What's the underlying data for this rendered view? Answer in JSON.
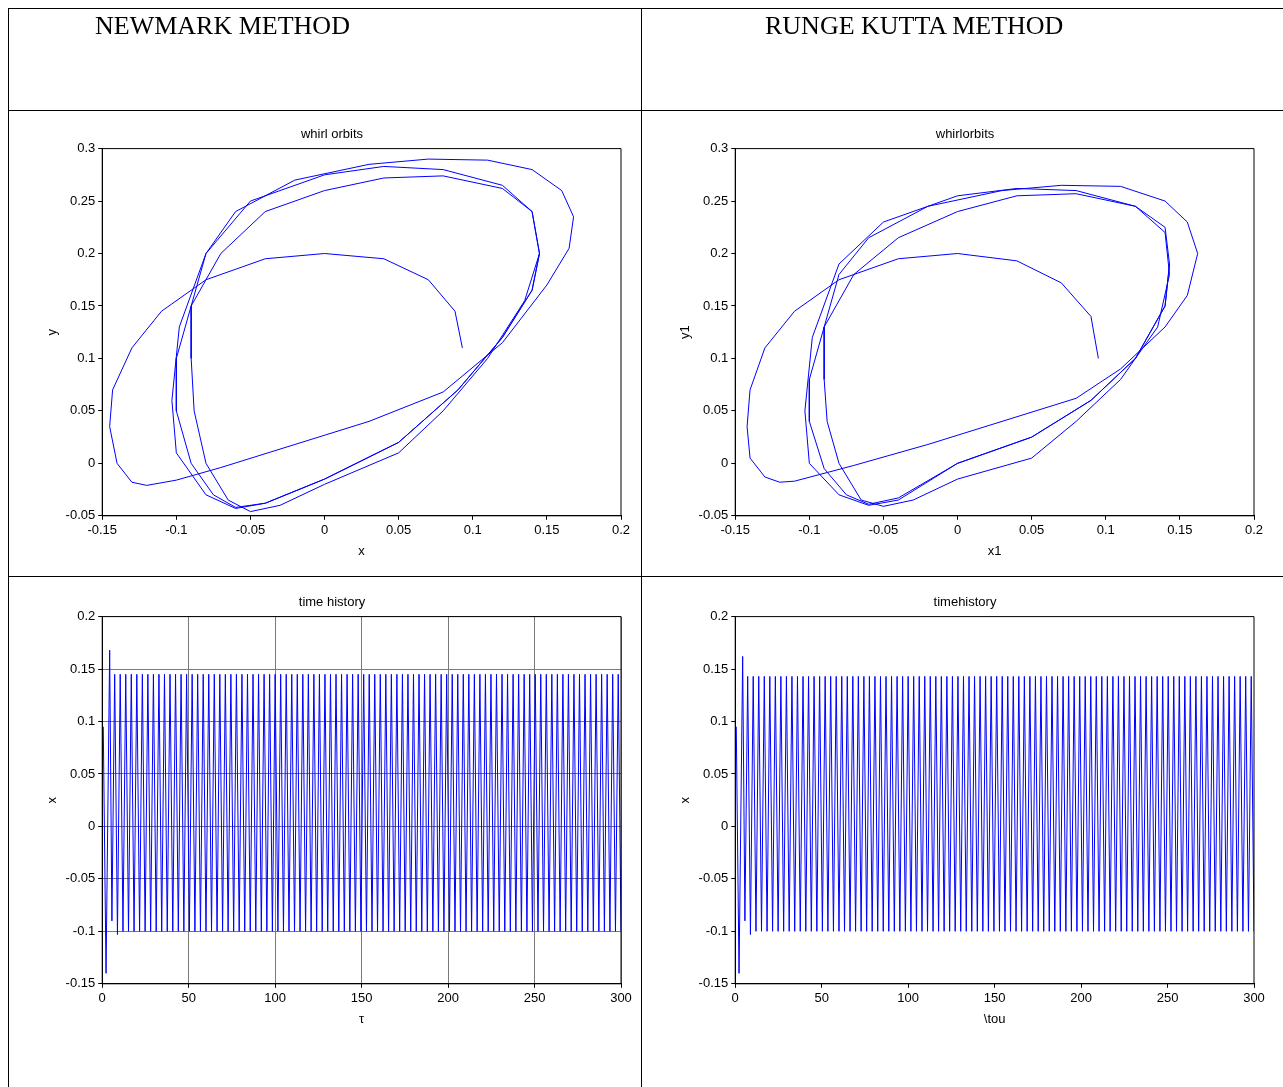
{
  "chart_data": [
    {
      "type": "line",
      "title": "whirl orbits",
      "xlabel": "x",
      "ylabel": "y",
      "annotations": [
        "NEWMARK METHOD"
      ],
      "color": "#0000ff",
      "xlim": [
        -0.15,
        0.2
      ],
      "ylim": [
        -0.05,
        0.3
      ],
      "xticks": [
        -0.15,
        -0.1,
        -0.05,
        0,
        0.05,
        0.1,
        0.15,
        0.2
      ],
      "yticks": [
        -0.05,
        0,
        0.05,
        0.1,
        0.15,
        0.2,
        0.25,
        0.3
      ],
      "x": [
        0.093,
        0.088,
        0.07,
        0.04,
        0,
        -0.04,
        -0.08,
        -0.11,
        -0.13,
        -0.143,
        -0.145,
        -0.14,
        -0.13,
        -0.12,
        -0.1,
        -0.07,
        -0.02,
        0.03,
        0.08,
        0.12,
        0.15,
        0.165,
        0.168,
        0.16,
        0.14,
        0.11,
        0.07,
        0.03,
        -0.02,
        -0.06,
        -0.08,
        -0.09,
        -0.09,
        -0.088,
        -0.08,
        -0.065,
        -0.05,
        -0.03,
        0,
        0.05,
        0.08,
        0.11,
        0.135,
        0.145,
        0.14,
        0.12,
        0.08,
        0.04,
        0,
        -0.05,
        -0.08,
        -0.098,
        -0.103,
        -0.1,
        -0.08,
        -0.06,
        -0.04,
        0,
        0.05,
        0.09,
        0.12,
        0.14,
        0.145,
        0.14,
        0.12,
        0.08,
        0.04,
        0,
        -0.04,
        -0.07,
        -0.09,
        -0.1,
        -0.1,
        -0.09,
        -0.075,
        -0.06,
        -0.04,
        0,
        0.05,
        0.09,
        0.12,
        0.14,
        0.145
      ],
      "values": [
        0.11,
        0.145,
        0.175,
        0.195,
        0.2,
        0.195,
        0.175,
        0.145,
        0.11,
        0.07,
        0.035,
        0,
        -0.018,
        -0.021,
        -0.016,
        -0.004,
        0.018,
        0.04,
        0.068,
        0.115,
        0.17,
        0.205,
        0.235,
        0.26,
        0.28,
        0.289,
        0.29,
        0.285,
        0.27,
        0.24,
        0.2,
        0.15,
        0.1,
        0.05,
        0,
        -0.035,
        -0.046,
        -0.04,
        -0.02,
        0.01,
        0.05,
        0.1,
        0.155,
        0.2,
        0.24,
        0.265,
        0.28,
        0.283,
        0.275,
        0.25,
        0.2,
        0.13,
        0.06,
        0.01,
        -0.03,
        -0.043,
        -0.038,
        -0.015,
        0.02,
        0.07,
        0.12,
        0.165,
        0.2,
        0.24,
        0.262,
        0.274,
        0.272,
        0.26,
        0.24,
        0.2,
        0.15,
        0.1,
        0.05,
        0,
        -0.03,
        -0.042,
        -0.038,
        -0.015,
        0.02,
        0.07,
        0.12,
        0.165,
        0.2
      ]
    },
    {
      "type": "line",
      "title": "whirlorbits",
      "xlabel": "x1",
      "ylabel": "y1",
      "annotations": [
        "RUNGE KUTTA METHOD"
      ],
      "color": "#0000ff",
      "xlim": [
        -0.15,
        0.2
      ],
      "ylim": [
        -0.05,
        0.3
      ],
      "xticks": [
        -0.15,
        -0.1,
        -0.05,
        0,
        0.05,
        0.1,
        0.15,
        0.2
      ],
      "yticks": [
        -0.05,
        0,
        0.05,
        0.1,
        0.15,
        0.2,
        0.25,
        0.3
      ],
      "x": [
        0.095,
        0.09,
        0.07,
        0.04,
        0,
        -0.04,
        -0.08,
        -0.11,
        -0.13,
        -0.14,
        -0.142,
        -0.14,
        -0.13,
        -0.12,
        -0.11,
        -0.07,
        -0.02,
        0.03,
        0.08,
        0.11,
        0.14,
        0.155,
        0.162,
        0.155,
        0.14,
        0.11,
        0.07,
        0.03,
        -0.02,
        -0.06,
        -0.08,
        -0.09,
        -0.09,
        -0.088,
        -0.08,
        -0.065,
        -0.05,
        -0.03,
        0,
        0.05,
        0.08,
        0.11,
        0.135,
        0.143,
        0.14,
        0.12,
        0.08,
        0.04,
        0,
        -0.05,
        -0.08,
        -0.098,
        -0.103,
        -0.1,
        -0.08,
        -0.06,
        -0.04,
        0,
        0.05,
        0.09,
        0.12,
        0.14,
        0.143,
        0.14,
        0.12,
        0.08,
        0.04,
        0,
        -0.04,
        -0.07,
        -0.09,
        -0.1,
        -0.1,
        -0.09,
        -0.075,
        -0.06,
        -0.04,
        0,
        0.05,
        0.09,
        0.12,
        0.14,
        0.143
      ],
      "values": [
        0.1,
        0.14,
        0.172,
        0.193,
        0.2,
        0.195,
        0.175,
        0.145,
        0.11,
        0.07,
        0.035,
        0.005,
        -0.013,
        -0.018,
        -0.017,
        -0.002,
        0.018,
        0.04,
        0.062,
        0.09,
        0.13,
        0.16,
        0.2,
        0.23,
        0.25,
        0.264,
        0.265,
        0.26,
        0.245,
        0.215,
        0.18,
        0.13,
        0.08,
        0.04,
        0,
        -0.035,
        -0.041,
        -0.035,
        -0.015,
        0.005,
        0.04,
        0.08,
        0.13,
        0.18,
        0.22,
        0.245,
        0.26,
        0.262,
        0.255,
        0.23,
        0.19,
        0.12,
        0.05,
        0,
        -0.03,
        -0.04,
        -0.035,
        0,
        0.025,
        0.06,
        0.1,
        0.15,
        0.19,
        0.225,
        0.245,
        0.257,
        0.255,
        0.24,
        0.215,
        0.18,
        0.13,
        0.08,
        0.04,
        -0.005,
        -0.03,
        -0.039,
        -0.033,
        0,
        0.025,
        0.06,
        0.1,
        0.15,
        0.19
      ]
    },
    {
      "type": "line",
      "title": "time history",
      "xlabel": "τ",
      "ylabel": "x",
      "color": "#0000ff",
      "grid": true,
      "xlim": [
        0,
        300
      ],
      "ylim": [
        -0.15,
        0.2
      ],
      "xticks": [
        0,
        50,
        100,
        150,
        200,
        250,
        300
      ],
      "yticks": [
        -0.15,
        -0.1,
        -0.05,
        0,
        0.05,
        0.1,
        0.15,
        0.2
      ],
      "x": [
        0.6,
        2.2,
        4.3,
        5.6,
        7.2,
        8.8,
        10.4,
        12,
        13.6,
        15.2,
        16.8,
        18.4,
        20,
        21.6,
        23.2,
        24.8,
        26.4,
        28,
        29.6,
        31.2,
        32.8,
        34.4,
        36,
        37.6,
        39.2,
        40.8,
        42.4,
        44,
        45.6,
        47.2,
        48.8,
        50.4,
        52,
        53.6,
        55.2,
        56.8,
        58.4,
        60,
        61.6,
        63.2,
        64.8,
        66.4,
        68,
        69.6,
        71.2,
        72.8,
        74.4,
        76,
        77.6,
        79.2,
        80.8,
        82.4,
        84,
        85.6,
        87.2,
        88.8,
        90.4,
        92,
        93.6,
        95.2,
        96.8,
        98.4,
        100,
        101.6,
        103.2,
        104.8,
        106.4,
        108,
        109.6,
        111.2,
        112.8,
        114.4,
        116,
        117.6,
        119.2,
        120.8,
        122.4,
        124,
        125.6,
        127.2,
        128.8,
        130.4,
        132,
        133.6,
        135.2,
        136.8,
        138.4,
        140,
        141.6,
        143.2,
        144.8,
        146.4,
        148,
        149.6,
        151.2,
        152.8,
        154.4,
        156,
        157.6,
        159.2,
        160.8,
        162.4,
        164,
        165.6,
        167.2,
        168.8,
        170.4,
        172,
        173.6,
        175.2,
        176.8,
        178.4,
        180,
        181.6,
        183.2,
        184.8,
        186.4,
        188,
        189.6,
        191.2,
        192.8,
        194.4,
        196,
        197.6,
        199.2,
        200.8,
        202.4,
        204,
        205.6,
        207.2,
        208.8,
        210.4,
        212,
        213.6,
        215.2,
        216.8,
        218.4,
        220,
        221.6,
        223.2,
        224.8,
        226.4,
        228,
        229.6,
        231.2,
        232.8,
        234.4,
        236,
        237.6,
        239.2,
        240.8,
        242.4,
        244,
        245.6,
        247.2,
        248.8,
        250.4,
        252,
        253.6,
        255.2,
        256.8,
        258.4,
        260,
        261.6,
        263.2,
        264.8,
        266.4,
        268,
        269.6,
        271.2,
        272.8,
        274.4,
        276,
        277.6,
        279.2,
        280.8,
        282.4,
        284,
        285.6,
        287.2,
        288.8,
        290.4,
        292,
        293.6,
        295.2,
        296.8,
        298.4,
        300
      ],
      "values": [
        0.095,
        -0.14,
        0.168,
        -0.09,
        0.145,
        -0.103,
        0.145,
        -0.1,
        0.145,
        -0.1,
        0.145,
        -0.1,
        0.145,
        -0.1,
        0.145,
        -0.1,
        0.145,
        -0.1,
        0.145,
        -0.1,
        0.145,
        -0.1,
        0.145,
        -0.1,
        0.145,
        -0.1,
        0.145,
        -0.1,
        0.145,
        -0.1,
        0.145,
        -0.1,
        0.145,
        -0.1,
        0.145,
        -0.1,
        0.145,
        -0.1,
        0.145,
        -0.1,
        0.145,
        -0.1,
        0.145,
        -0.1,
        0.145,
        -0.1,
        0.145,
        -0.1,
        0.145,
        -0.1,
        0.145,
        -0.1,
        0.145,
        -0.1,
        0.145,
        -0.1,
        0.145,
        -0.1,
        0.145,
        -0.1,
        0.145,
        -0.1,
        0.145,
        -0.1,
        0.145,
        -0.1,
        0.145,
        -0.1,
        0.145,
        -0.1,
        0.145,
        -0.1,
        0.145,
        -0.1,
        0.145,
        -0.1,
        0.145,
        -0.1,
        0.145,
        -0.1,
        0.145,
        -0.1,
        0.145,
        -0.1,
        0.145,
        -0.1,
        0.145,
        -0.1,
        0.145,
        -0.1,
        0.145,
        -0.1,
        0.145,
        -0.1,
        0.145,
        -0.1,
        0.145,
        -0.1,
        0.145,
        -0.1,
        0.145,
        -0.1,
        0.145,
        -0.1,
        0.145,
        -0.1,
        0.145,
        -0.1,
        0.145,
        -0.1,
        0.145,
        -0.1,
        0.145,
        -0.1,
        0.145,
        -0.1,
        0.145,
        -0.1,
        0.145,
        -0.1,
        0.145,
        -0.1,
        0.145,
        -0.1,
        0.145,
        -0.1,
        0.145,
        -0.1,
        0.145,
        -0.1,
        0.145,
        -0.1,
        0.145,
        -0.1,
        0.145,
        -0.1,
        0.145,
        -0.1,
        0.145,
        -0.1,
        0.145,
        -0.1,
        0.145,
        -0.1,
        0.145,
        -0.1,
        0.145,
        -0.1,
        0.145,
        -0.1,
        0.145,
        -0.1,
        0.145,
        -0.1,
        0.145,
        -0.1,
        0.145,
        -0.1,
        0.145,
        -0.1,
        0.145,
        -0.1,
        0.145,
        -0.1,
        0.145,
        -0.1,
        0.145,
        -0.1,
        0.145,
        -0.1,
        0.145,
        -0.1,
        0.145,
        -0.1,
        0.145,
        -0.1,
        0.145,
        -0.1,
        0.145,
        -0.1,
        0.145,
        -0.1,
        0.145,
        -0.1,
        0.145,
        -0.1,
        0.145,
        -0.1
      ]
    },
    {
      "type": "line",
      "title": "timehistory",
      "xlabel": "\\tou",
      "ylabel": "x",
      "color": "#0000ff",
      "xlim": [
        0,
        300
      ],
      "ylim": [
        -0.15,
        0.2
      ],
      "xticks": [
        0,
        50,
        100,
        150,
        200,
        250,
        300
      ],
      "yticks": [
        -0.15,
        -0.1,
        -0.05,
        0,
        0.05,
        0.1,
        0.15,
        0.2
      ],
      "x": [
        0.6,
        2.2,
        4.3,
        5.6,
        7.2,
        8.8,
        10.4,
        12,
        13.6,
        15.2,
        16.8,
        18.4,
        20,
        21.6,
        23.2,
        24.8,
        26.4,
        28,
        29.6,
        31.2,
        32.8,
        34.4,
        36,
        37.6,
        39.2,
        40.8,
        42.4,
        44,
        45.6,
        47.2,
        48.8,
        50.4,
        52,
        53.6,
        55.2,
        56.8,
        58.4,
        60,
        61.6,
        63.2,
        64.8,
        66.4,
        68,
        69.6,
        71.2,
        72.8,
        74.4,
        76,
        77.6,
        79.2,
        80.8,
        82.4,
        84,
        85.6,
        87.2,
        88.8,
        90.4,
        92,
        93.6,
        95.2,
        96.8,
        98.4,
        100,
        101.6,
        103.2,
        104.8,
        106.4,
        108,
        109.6,
        111.2,
        112.8,
        114.4,
        116,
        117.6,
        119.2,
        120.8,
        122.4,
        124,
        125.6,
        127.2,
        128.8,
        130.4,
        132,
        133.6,
        135.2,
        136.8,
        138.4,
        140,
        141.6,
        143.2,
        144.8,
        146.4,
        148,
        149.6,
        151.2,
        152.8,
        154.4,
        156,
        157.6,
        159.2,
        160.8,
        162.4,
        164,
        165.6,
        167.2,
        168.8,
        170.4,
        172,
        173.6,
        175.2,
        176.8,
        178.4,
        180,
        181.6,
        183.2,
        184.8,
        186.4,
        188,
        189.6,
        191.2,
        192.8,
        194.4,
        196,
        197.6,
        199.2,
        200.8,
        202.4,
        204,
        205.6,
        207.2,
        208.8,
        210.4,
        212,
        213.6,
        215.2,
        216.8,
        218.4,
        220,
        221.6,
        223.2,
        224.8,
        226.4,
        228,
        229.6,
        231.2,
        232.8,
        234.4,
        236,
        237.6,
        239.2,
        240.8,
        242.4,
        244,
        245.6,
        247.2,
        248.8,
        250.4,
        252,
        253.6,
        255.2,
        256.8,
        258.4,
        260,
        261.6,
        263.2,
        264.8,
        266.4,
        268,
        269.6,
        271.2,
        272.8,
        274.4,
        276,
        277.6,
        279.2,
        280.8,
        282.4,
        284,
        285.6,
        287.2,
        288.8,
        290.4,
        292,
        293.6,
        295.2,
        296.8,
        298.4,
        300
      ],
      "values": [
        0.095,
        -0.14,
        0.162,
        -0.09,
        0.143,
        -0.103,
        0.143,
        -0.1,
        0.143,
        -0.1,
        0.143,
        -0.1,
        0.143,
        -0.1,
        0.143,
        -0.1,
        0.143,
        -0.1,
        0.143,
        -0.1,
        0.143,
        -0.1,
        0.143,
        -0.1,
        0.143,
        -0.1,
        0.143,
        -0.1,
        0.143,
        -0.1,
        0.143,
        -0.1,
        0.143,
        -0.1,
        0.143,
        -0.1,
        0.143,
        -0.1,
        0.143,
        -0.1,
        0.143,
        -0.1,
        0.143,
        -0.1,
        0.143,
        -0.1,
        0.143,
        -0.1,
        0.143,
        -0.1,
        0.143,
        -0.1,
        0.143,
        -0.1,
        0.143,
        -0.1,
        0.143,
        -0.1,
        0.143,
        -0.1,
        0.143,
        -0.1,
        0.143,
        -0.1,
        0.143,
        -0.1,
        0.143,
        -0.1,
        0.143,
        -0.1,
        0.143,
        -0.1,
        0.143,
        -0.1,
        0.143,
        -0.1,
        0.143,
        -0.1,
        0.143,
        -0.1,
        0.143,
        -0.1,
        0.143,
        -0.1,
        0.143,
        -0.1,
        0.143,
        -0.1,
        0.143,
        -0.1,
        0.143,
        -0.1,
        0.143,
        -0.1,
        0.143,
        -0.1,
        0.143,
        -0.1,
        0.143,
        -0.1,
        0.143,
        -0.1,
        0.143,
        -0.1,
        0.143,
        -0.1,
        0.143,
        -0.1,
        0.143,
        -0.1,
        0.143,
        -0.1,
        0.143,
        -0.1,
        0.143,
        -0.1,
        0.143,
        -0.1,
        0.143,
        -0.1,
        0.143,
        -0.1,
        0.143,
        -0.1,
        0.143,
        -0.1,
        0.143,
        -0.1,
        0.143,
        -0.1,
        0.143,
        -0.1,
        0.143,
        -0.1,
        0.143,
        -0.1,
        0.143,
        -0.1,
        0.143,
        -0.1,
        0.143,
        -0.1,
        0.143,
        -0.1,
        0.143,
        -0.1,
        0.143,
        -0.1,
        0.143,
        -0.1,
        0.143,
        -0.1,
        0.143,
        -0.1,
        0.143,
        -0.1,
        0.143,
        -0.1,
        0.143,
        -0.1,
        0.143,
        -0.1,
        0.143,
        -0.1,
        0.143,
        -0.1,
        0.143,
        -0.1,
        0.143,
        -0.1,
        0.143,
        -0.1,
        0.143,
        -0.1,
        0.143,
        -0.1,
        0.143,
        -0.1,
        0.143,
        -0.1,
        0.143,
        -0.1,
        0.143,
        -0.1,
        0.143,
        -0.1,
        0.143,
        -0.1
      ]
    }
  ]
}
